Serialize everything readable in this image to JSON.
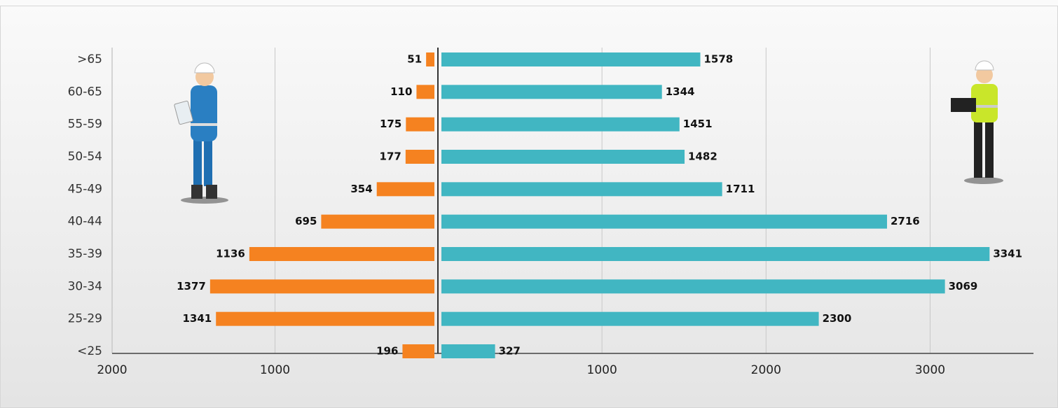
{
  "chart_data": {
    "type": "butterfly",
    "categories": [
      ">65",
      "60-65",
      "55-59",
      "50-54",
      "45-49",
      "40-44",
      "35-39",
      "30-34",
      "25-29",
      "<25"
    ],
    "series": [
      {
        "color": "#f58220",
        "side": "left",
        "values": [
          51,
          110,
          175,
          177,
          354,
          695,
          1136,
          1377,
          1341,
          196
        ]
      },
      {
        "color": "#41b6c2",
        "side": "right",
        "values": [
          1578,
          1344,
          1451,
          1482,
          1711,
          2716,
          3341,
          3069,
          2300,
          327
        ]
      }
    ],
    "xlim_left": [
      2000,
      0
    ],
    "xticks_left": [
      2000,
      1000
    ],
    "xlim": [
      0,
      3630
    ],
    "xticks": [
      1000,
      2000,
      3000
    ],
    "grid": true
  }
}
